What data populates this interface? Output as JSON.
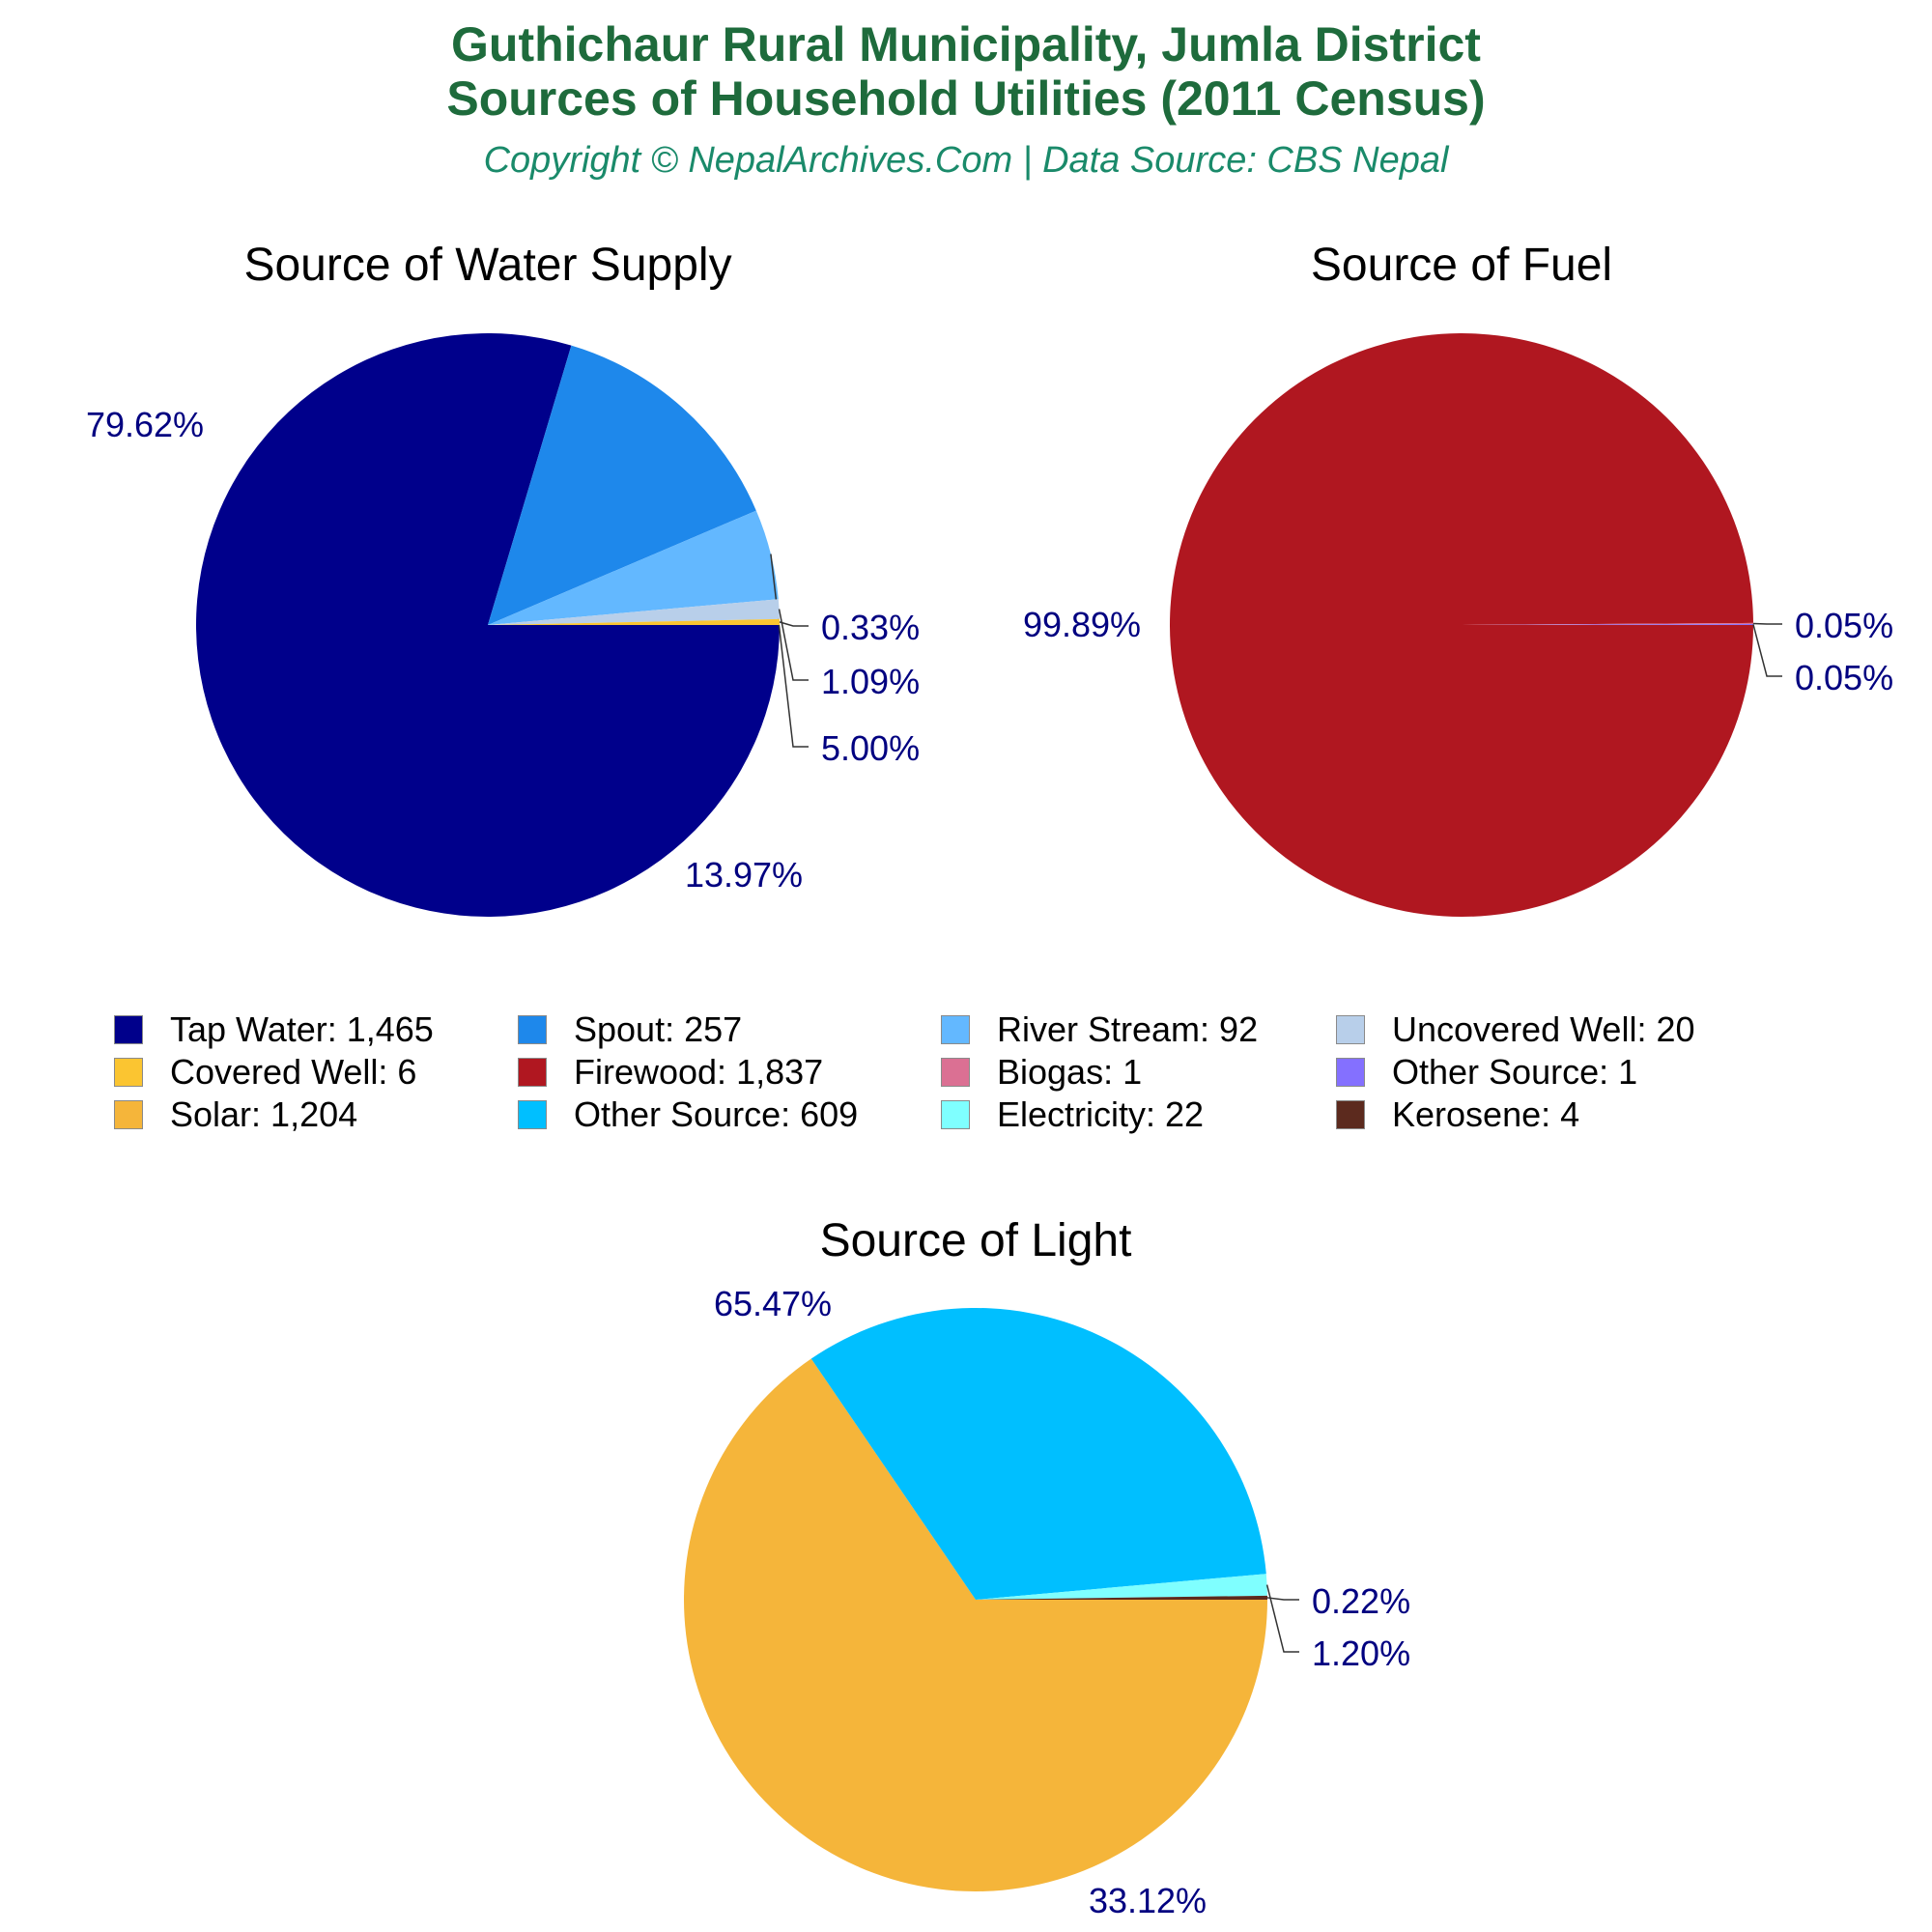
{
  "header": {
    "title_line1": "Guthichaur Rural Municipality, Jumla District",
    "title_line2": "Sources of Household Utilities (2011 Census)",
    "subtitle": "Copyright © NepalArchives.Com | Data Source: CBS Nepal"
  },
  "colors": {
    "title": "#1e6b3c",
    "subtitle": "#1a8a6a",
    "percent_label": "#000080"
  },
  "chart_data": [
    {
      "type": "pie",
      "title": "Source of Water Supply",
      "slices": [
        {
          "label": "Tap Water",
          "value": 1465,
          "percent": "79.62%",
          "color": "#00008b"
        },
        {
          "label": "Spout",
          "value": 257,
          "percent": "13.97%",
          "color": "#1e88eb"
        },
        {
          "label": "River Stream",
          "value": 92,
          "percent": "5.00%",
          "color": "#63b8ff"
        },
        {
          "label": "Uncovered Well",
          "value": 20,
          "percent": "1.09%",
          "color": "#b8cfea"
        },
        {
          "label": "Covered Well",
          "value": 6,
          "percent": "0.33%",
          "color": "#fbc531"
        }
      ]
    },
    {
      "type": "pie",
      "title": "Source of Fuel",
      "slices": [
        {
          "label": "Firewood",
          "value": 1837,
          "percent": "99.89%",
          "color": "#b01720"
        },
        {
          "label": "Biogas",
          "value": 1,
          "percent": "0.05%",
          "color": "#db7093"
        },
        {
          "label": "Other Source",
          "value": 1,
          "percent": "0.05%",
          "color": "#8470ff"
        }
      ]
    },
    {
      "type": "pie",
      "title": "Source of Light",
      "slices": [
        {
          "label": "Solar",
          "value": 1204,
          "percent": "65.47%",
          "color": "#f5b53a"
        },
        {
          "label": "Other Source",
          "value": 609,
          "percent": "33.12%",
          "color": "#00bfff"
        },
        {
          "label": "Electricity",
          "value": 22,
          "percent": "1.20%",
          "color": "#7fffff"
        },
        {
          "label": "Kerosene",
          "value": 4,
          "percent": "0.22%",
          "color": "#5c2a1e"
        }
      ]
    }
  ],
  "legend": [
    {
      "text": "Tap Water: 1,465",
      "color": "#00008b"
    },
    {
      "text": "Spout: 257",
      "color": "#1e88eb"
    },
    {
      "text": "River Stream: 92",
      "color": "#63b8ff"
    },
    {
      "text": "Uncovered Well: 20",
      "color": "#b8cfea"
    },
    {
      "text": "Covered Well: 6",
      "color": "#fbc531"
    },
    {
      "text": "Firewood: 1,837",
      "color": "#b01720"
    },
    {
      "text": "Biogas: 1",
      "color": "#db7093"
    },
    {
      "text": "Other Source: 1",
      "color": "#8470ff"
    },
    {
      "text": "Solar: 1,204",
      "color": "#f5b53a"
    },
    {
      "text": "Other Source: 609",
      "color": "#00bfff"
    },
    {
      "text": "Electricity: 22",
      "color": "#7fffff"
    },
    {
      "text": "Kerosene: 4",
      "color": "#5c2a1e"
    }
  ]
}
